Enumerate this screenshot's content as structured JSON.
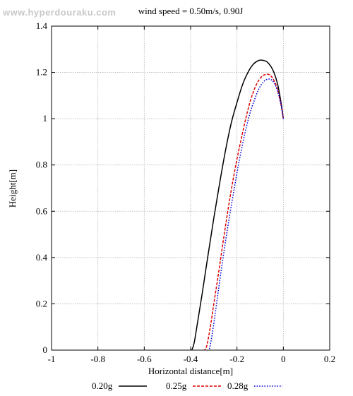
{
  "watermark": "www.hyperdouraku.com",
  "chart_data": {
    "type": "line",
    "title": "wind speed = 0.50m/s, 0.90J",
    "xlabel": "Horizontal distance[m]",
    "ylabel": "Height[m]",
    "xlim": [
      -1,
      0.2
    ],
    "ylim": [
      0,
      1.4
    ],
    "xticks": [
      -1,
      -0.8,
      -0.6,
      -0.4,
      -0.2,
      0,
      0.2
    ],
    "xtick_labels": [
      "-1",
      "-0.8",
      "-0.6",
      "-0.4",
      "-0.2",
      "0",
      "0.2"
    ],
    "yticks": [
      0,
      0.2,
      0.4,
      0.6,
      0.8,
      1,
      1.2,
      1.4
    ],
    "ytick_labels": [
      "0",
      "0.2",
      "0.4",
      "0.6",
      "0.8",
      "1",
      "1.2",
      "1.4"
    ],
    "grid": true,
    "legend_position": "bottom",
    "series": [
      {
        "name": "0.20g",
        "color": "#000000",
        "dash": "solid",
        "x": [
          0,
          -0.01,
          -0.025,
          -0.045,
          -0.07,
          -0.095,
          -0.11,
          -0.13,
          -0.15,
          -0.175,
          -0.2,
          -0.225,
          -0.25,
          -0.275,
          -0.3,
          -0.325,
          -0.35,
          -0.37,
          -0.385,
          -0.395
        ],
        "y": [
          1.0,
          1.07,
          1.15,
          1.21,
          1.245,
          1.253,
          1.25,
          1.235,
          1.205,
          1.15,
          1.07,
          0.98,
          0.86,
          0.72,
          0.57,
          0.41,
          0.245,
          0.12,
          0.03,
          0.0
        ]
      },
      {
        "name": "0.25g",
        "color": "#e00000",
        "dash": "dashed",
        "x": [
          0,
          -0.01,
          -0.025,
          -0.04,
          -0.06,
          -0.08,
          -0.095,
          -0.115,
          -0.135,
          -0.155,
          -0.18,
          -0.205,
          -0.23,
          -0.255,
          -0.28,
          -0.3,
          -0.315,
          -0.33,
          -0.34
        ],
        "y": [
          1.0,
          1.06,
          1.125,
          1.165,
          1.19,
          1.19,
          1.18,
          1.15,
          1.1,
          1.03,
          0.92,
          0.8,
          0.66,
          0.5,
          0.33,
          0.2,
          0.1,
          0.02,
          0.0
        ]
      },
      {
        "name": "0.28g",
        "color": "#0000e0",
        "dash": "dotted",
        "x": [
          0,
          -0.01,
          -0.025,
          -0.04,
          -0.055,
          -0.07,
          -0.085,
          -0.105,
          -0.125,
          -0.145,
          -0.165,
          -0.19,
          -0.215,
          -0.24,
          -0.26,
          -0.28,
          -0.295,
          -0.31,
          -0.32
        ],
        "y": [
          1.0,
          1.06,
          1.12,
          1.155,
          1.17,
          1.17,
          1.16,
          1.13,
          1.08,
          1.02,
          0.94,
          0.82,
          0.68,
          0.53,
          0.4,
          0.26,
          0.15,
          0.05,
          0.0
        ]
      }
    ]
  }
}
